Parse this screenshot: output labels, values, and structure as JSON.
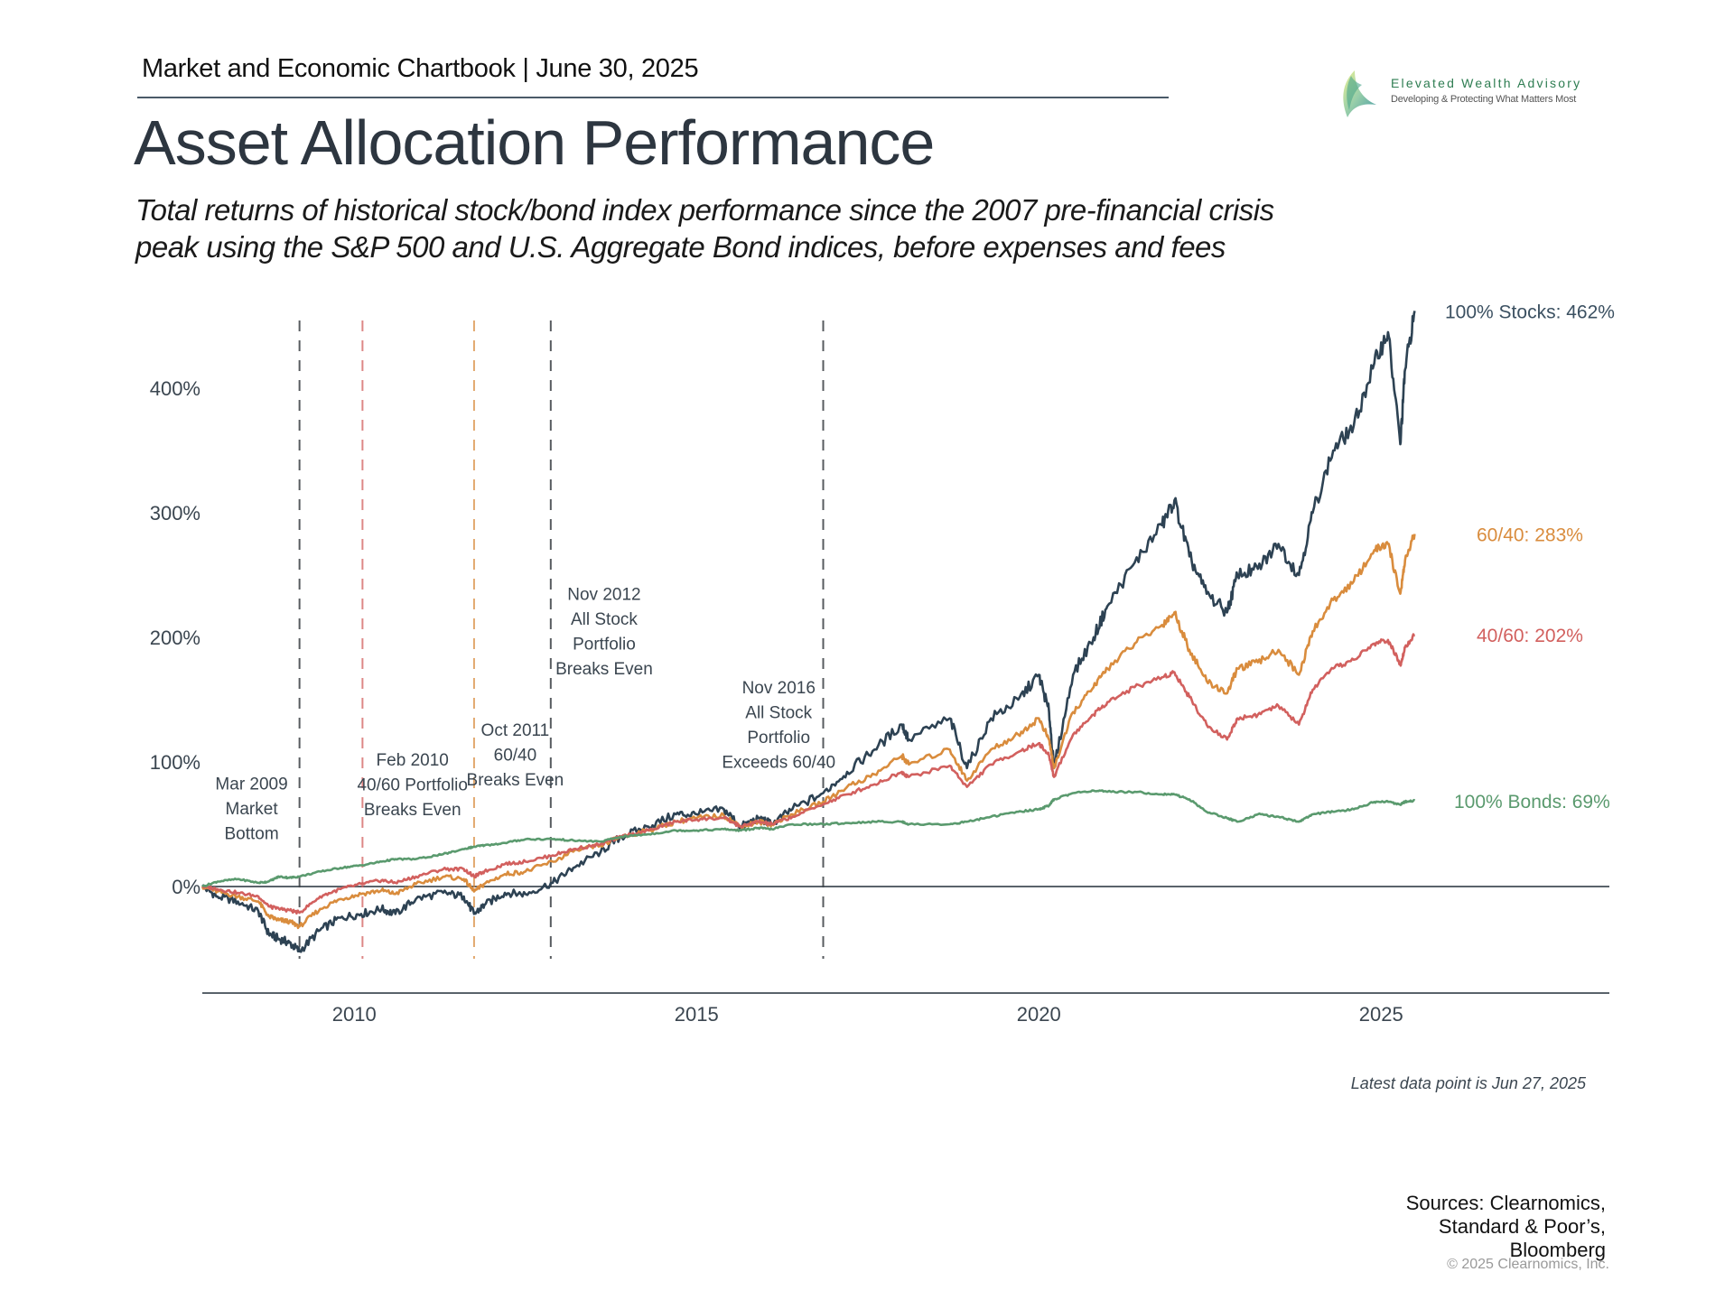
{
  "header": {
    "chartbook": "Market and Economic Chartbook | June 30, 2025",
    "title": "Asset Allocation Performance",
    "subtitle_line1": "Total returns of historical stock/bond index performance since the 2007 pre-financial crisis",
    "subtitle_line2": "peak using the S&P 500 and U.S. Aggregate Bond indices, before expenses and fees"
  },
  "logo": {
    "name": "Elevated Wealth Advisory",
    "tagline": "Developing & Protecting What Matters Most",
    "icon": "sail-leaf-icon"
  },
  "footer": {
    "latest": "Latest data point is Jun 27, 2025",
    "sources": [
      "Sources: Clearnomics,",
      "Standard & Poor’s,",
      "Bloomberg"
    ],
    "copyright": "© 2025 Clearnomics, Inc."
  },
  "chart_data": {
    "type": "line",
    "title": "Asset Allocation Performance",
    "xlabel": "",
    "ylabel": "",
    "x_range": [
      2007.78,
      2025.49
    ],
    "x_axis_max": 2028.0,
    "x_ticks": [
      2010,
      2015,
      2020,
      2025
    ],
    "x_tick_labels": [
      "2010",
      "2015",
      "2020",
      "2025"
    ],
    "ylim": [
      -80,
      470
    ],
    "y_ticks": [
      0,
      100,
      200,
      300,
      400
    ],
    "y_tick_labels": [
      "0%",
      "100%",
      "200%",
      "300%",
      "400%"
    ],
    "grid": false,
    "zero_line": true,
    "x": [
      2007.78,
      2008.0,
      2008.3,
      2008.6,
      2008.75,
      2008.9,
      2009.05,
      2009.2,
      2009.5,
      2009.8,
      2010.1,
      2010.4,
      2010.6,
      2010.9,
      2011.3,
      2011.6,
      2011.75,
      2011.9,
      2012.2,
      2012.5,
      2012.9,
      2013.2,
      2013.6,
      2013.9,
      2014.3,
      2014.7,
      2015.0,
      2015.4,
      2015.65,
      2015.9,
      2016.1,
      2016.4,
      2016.85,
      2017.2,
      2017.6,
      2018.0,
      2018.1,
      2018.7,
      2018.95,
      2019.3,
      2019.7,
      2020.0,
      2020.15,
      2020.22,
      2020.5,
      2020.8,
      2021.0,
      2021.4,
      2021.8,
      2021.98,
      2022.2,
      2022.45,
      2022.75,
      2022.9,
      2023.2,
      2023.5,
      2023.8,
      2024.0,
      2024.3,
      2024.6,
      2024.9,
      2025.1,
      2025.28,
      2025.35,
      2025.49
    ],
    "series": [
      {
        "name": "100% Stocks",
        "label": "100% Stocks: 462%",
        "color": "#2d4253",
        "values": [
          0,
          -8,
          -12,
          -20,
          -38,
          -42,
          -45,
          -52,
          -35,
          -25,
          -22,
          -18,
          -22,
          -10,
          -5,
          -8,
          -22,
          -15,
          -5,
          -6,
          3,
          15,
          28,
          40,
          48,
          58,
          58,
          62,
          48,
          55,
          50,
          62,
          75,
          92,
          110,
          130,
          118,
          135,
          95,
          135,
          150,
          170,
          140,
          95,
          170,
          200,
          225,
          260,
          290,
          310,
          265,
          235,
          220,
          250,
          255,
          275,
          250,
          300,
          350,
          370,
          420,
          445,
          355,
          415,
          462
        ]
      },
      {
        "name": "60/40",
        "label": "60/40: 283%",
        "color": "#d98c3d",
        "values": [
          0,
          -4,
          -8,
          -12,
          -24,
          -27,
          -28,
          -32,
          -18,
          -10,
          -6,
          -3,
          -6,
          2,
          8,
          6,
          -4,
          2,
          10,
          12,
          20,
          28,
          33,
          40,
          45,
          52,
          55,
          57,
          48,
          52,
          50,
          58,
          68,
          80,
          90,
          105,
          98,
          110,
          85,
          110,
          122,
          135,
          118,
          95,
          140,
          160,
          175,
          195,
          210,
          220,
          190,
          165,
          155,
          175,
          180,
          190,
          170,
          205,
          230,
          245,
          270,
          275,
          235,
          262,
          283
        ]
      },
      {
        "name": "40/60",
        "label": "40/60: 202%",
        "color": "#d2605e",
        "values": [
          0,
          -2,
          -5,
          -8,
          -16,
          -18,
          -19,
          -21,
          -8,
          -2,
          2,
          5,
          3,
          8,
          14,
          14,
          8,
          12,
          18,
          20,
          25,
          30,
          34,
          40,
          45,
          52,
          54,
          55,
          48,
          52,
          50,
          56,
          66,
          74,
          82,
          92,
          88,
          97,
          80,
          98,
          108,
          115,
          105,
          88,
          122,
          138,
          148,
          160,
          168,
          172,
          152,
          130,
          118,
          135,
          138,
          145,
          130,
          158,
          175,
          182,
          195,
          198,
          178,
          192,
          202
        ]
      },
      {
        "name": "100% Bonds",
        "label": "100% Bonds: 69%",
        "color": "#5a9a6e",
        "values": [
          0,
          4,
          6,
          3,
          4,
          8,
          7,
          8,
          12,
          15,
          17,
          20,
          22,
          22,
          26,
          30,
          32,
          33,
          35,
          38,
          38,
          37,
          36,
          40,
          42,
          45,
          45,
          46,
          45,
          47,
          46,
          50,
          50,
          51,
          52,
          52,
          50,
          50,
          52,
          56,
          60,
          62,
          65,
          70,
          75,
          77,
          76,
          76,
          74,
          74,
          70,
          60,
          55,
          52,
          58,
          56,
          52,
          58,
          60,
          62,
          68,
          68,
          66,
          68,
          69
        ]
      }
    ],
    "annotations": [
      {
        "date": "Mar 2009",
        "x": 2009.2,
        "lines": [
          "Mar 2009",
          "Market",
          "Bottom"
        ],
        "color": "#3a3f44",
        "text_x": 2008.5,
        "text_y": 78,
        "align": "center"
      },
      {
        "date": "Feb 2010",
        "x": 2010.12,
        "lines": [
          "Feb 2010",
          "40/60 Portfolio",
          "Breaks Even"
        ],
        "color": "#d2605e",
        "text_x": 2010.85,
        "text_y": 97,
        "align": "center"
      },
      {
        "date": "Oct 2011",
        "x": 2011.75,
        "lines": [
          "Oct 2011",
          "60/40",
          "Breaks Even"
        ],
        "color": "#d98c3d",
        "text_x": 2012.35,
        "text_y": 121,
        "align": "center"
      },
      {
        "date": "Nov 2012",
        "x": 2012.87,
        "lines": [
          "Nov 2012",
          "All Stock",
          "Portfolio",
          "Breaks Even"
        ],
        "color": "#3a3f44",
        "text_x": 2013.65,
        "text_y": 230,
        "align": "center"
      },
      {
        "date": "Nov 2016",
        "x": 2016.85,
        "lines": [
          "Nov 2016",
          "All Stock",
          "Portfolio",
          "Exceeds 60/40"
        ],
        "color": "#3a3f44",
        "text_x": 2016.2,
        "text_y": 155,
        "align": "center"
      }
    ],
    "end_labels": [
      {
        "text": "100% Stocks: 462%",
        "color": "#3b5061",
        "y": 462
      },
      {
        "text": "60/40: 283%",
        "color": "#d98c3d",
        "y": 283
      },
      {
        "text": "40/60: 202%",
        "color": "#d2605e",
        "y": 202
      },
      {
        "text": "100% Bonds: 69%",
        "color": "#5a9a6e",
        "y": 69
      }
    ],
    "footnote": "Latest data point is Jun 27, 2025"
  }
}
